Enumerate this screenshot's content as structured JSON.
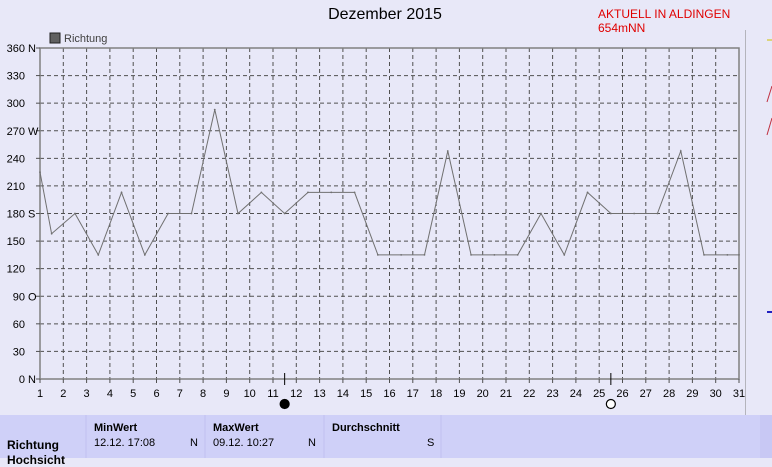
{
  "header": {
    "title": "Dezember 2015",
    "live_label": "AKTUELL IN ALDINGEN 654mNN"
  },
  "chart_data": {
    "type": "line",
    "title": "Dezember 2015",
    "legend": {
      "entries": [
        "Richtung"
      ],
      "placement": "top-left",
      "swatch_color": "#606060"
    },
    "line_color": "#707070",
    "grid": true,
    "x": [
      1,
      1.5,
      2.5,
      3.5,
      4.5,
      5.5,
      6.5,
      7.5,
      8.5,
      9.5,
      10.5,
      11.5,
      12.5,
      13.5,
      14.5,
      15.5,
      16.5,
      17.5,
      18.5,
      19.5,
      20.5,
      21.5,
      22.5,
      23.5,
      24.5,
      25.5,
      26.5,
      27.5,
      28.5,
      29.5,
      30.5,
      31
    ],
    "values": [
      225,
      158,
      180,
      135,
      203,
      135,
      180,
      180,
      293,
      180,
      203,
      180,
      203,
      203,
      203,
      135,
      135,
      135,
      248,
      135,
      135,
      135,
      180,
      135,
      203,
      180,
      180,
      180,
      248,
      135,
      135,
      135
    ],
    "xlim": [
      1,
      31
    ],
    "ylim": [
      0,
      360
    ],
    "x_ticks": [
      "1",
      "2",
      "3",
      "4",
      "5",
      "6",
      "7",
      "8",
      "9",
      "10",
      "11",
      "12",
      "13",
      "14",
      "15",
      "16",
      "17",
      "18",
      "19",
      "20",
      "21",
      "22",
      "23",
      "24",
      "25",
      "26",
      "27",
      "28",
      "29",
      "30",
      "31"
    ],
    "y_ticks": [
      {
        "value": 0,
        "label": "0",
        "dir": "N"
      },
      {
        "value": 30,
        "label": "30",
        "dir": ""
      },
      {
        "value": 60,
        "label": "60",
        "dir": ""
      },
      {
        "value": 90,
        "label": "90",
        "dir": "O"
      },
      {
        "value": 120,
        "label": "120",
        "dir": ""
      },
      {
        "value": 150,
        "label": "150",
        "dir": ""
      },
      {
        "value": 180,
        "label": "180",
        "dir": "S"
      },
      {
        "value": 210,
        "label": "210",
        "dir": ""
      },
      {
        "value": 240,
        "label": "240",
        "dir": ""
      },
      {
        "value": 270,
        "label": "270",
        "dir": "W"
      },
      {
        "value": 300,
        "label": "300",
        "dir": ""
      },
      {
        "value": 330,
        "label": "330",
        "dir": ""
      },
      {
        "value": 360,
        "label": "360",
        "dir": "N"
      }
    ],
    "moon_phases": [
      {
        "day": 11.5,
        "phase": "new-moon"
      },
      {
        "day": 25.5,
        "phase": "full-moon"
      }
    ]
  },
  "stats": {
    "row_label": "Richtung",
    "row_label2": "Hochsicht",
    "min": {
      "header": "MinWert",
      "time": "12.12.  17:08",
      "dir": "N"
    },
    "max": {
      "header": "MaxWert",
      "time": "09.12.  10:27",
      "dir": "N"
    },
    "avg": {
      "header": "Durchschnitt",
      "time": "",
      "dir": "S"
    }
  }
}
